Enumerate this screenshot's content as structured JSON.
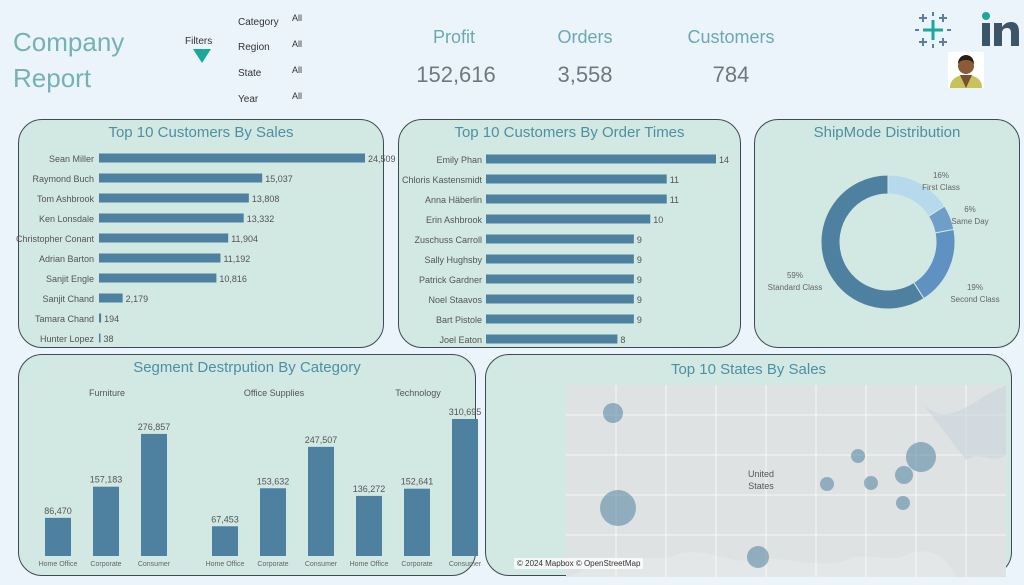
{
  "header": {
    "title": "Company Report",
    "filters_label": "Filters",
    "filters": [
      {
        "label": "Category",
        "value": "All"
      },
      {
        "label": "Region",
        "value": "All"
      },
      {
        "label": "State",
        "value": "All"
      },
      {
        "label": "Year",
        "value": "All"
      }
    ]
  },
  "kpis": [
    {
      "label": "Profit",
      "value": "152,616"
    },
    {
      "label": "Orders",
      "value": "3,558"
    },
    {
      "label": "Customers",
      "value": "784"
    }
  ],
  "colors": {
    "bar": "#4e81a0",
    "panel": "#d2e8e3",
    "accent": "#1aa89a"
  },
  "map": {
    "title": "Top 10 States By Sales",
    "label": "United\nStates",
    "credit": "© 2024 Mapbox © OpenStreetMap"
  },
  "chart_data": [
    {
      "type": "bar",
      "orientation": "horizontal",
      "title": "Top 10 Customers By Sales",
      "categories": [
        "Sean Miller",
        "Raymond Buch",
        "Tom Ashbrook",
        "Ken Lonsdale",
        "Christopher Conant",
        "Adrian Barton",
        "Sanjit Engle",
        "Sanjit Chand",
        "Tamara Chand",
        "Hunter Lopez"
      ],
      "values": [
        24509,
        15037,
        13808,
        13332,
        11904,
        11192,
        10816,
        2179,
        194,
        38
      ],
      "labels": [
        "24,509",
        "15,037",
        "13,808",
        "13,332",
        "11,904",
        "11,192",
        "10,816",
        "2,179",
        "194",
        "38"
      ],
      "xlim": [
        0,
        24509
      ]
    },
    {
      "type": "bar",
      "orientation": "horizontal",
      "title": "Top 10 Customers By Order Times",
      "categories": [
        "Emily Phan",
        "Chloris Kastensmidt",
        "Anna Häberlin",
        "Erin Ashbrook",
        "Zuschuss Carroll",
        "Sally Hughsby",
        "Patrick Gardner",
        "Noel Staavos",
        "Bart Pistole",
        "Joel Eaton"
      ],
      "values": [
        14,
        11,
        11,
        10,
        9,
        9,
        9,
        9,
        9,
        8
      ],
      "labels": [
        "14",
        "11",
        "11",
        "10",
        "9",
        "9",
        "9",
        "9",
        "9",
        "8"
      ],
      "xlim": [
        0,
        14
      ]
    },
    {
      "type": "pie",
      "donut": true,
      "title": "ShipMode Distribution",
      "slices": [
        {
          "name": "First Class",
          "value": 16,
          "label": "16%",
          "color": "#b7d9ec"
        },
        {
          "name": "Same Day",
          "value": 6,
          "label": "6%",
          "color": "#6f9fc8"
        },
        {
          "name": "Second Class",
          "value": 19,
          "label": "19%",
          "color": "#5f92c2"
        },
        {
          "name": "Standard Class",
          "value": 59,
          "label": "59%",
          "color": "#4e81a0"
        }
      ]
    },
    {
      "type": "bar",
      "title": "Segment Destrpution By Category",
      "groups": [
        "Furniture",
        "Office Supplies",
        "Technology"
      ],
      "categories": [
        "Home Office",
        "Corporate",
        "Consumer"
      ],
      "series": [
        {
          "values": [
            86470,
            157183,
            276857
          ],
          "labels": [
            "86,470",
            "157,183",
            "276,857"
          ]
        },
        {
          "values": [
            67453,
            153632,
            247507
          ],
          "labels": [
            "67,453",
            "153,632",
            "247,507"
          ]
        },
        {
          "values": [
            136272,
            152641,
            310695
          ],
          "labels": [
            "136,272",
            "152,641",
            "310,695"
          ]
        }
      ],
      "ylim": [
        0,
        310695
      ]
    }
  ]
}
